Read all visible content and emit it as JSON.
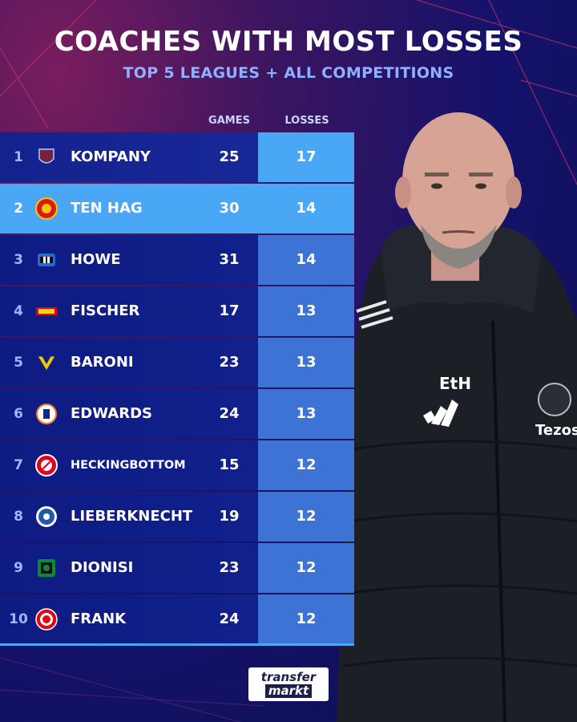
{
  "header": {
    "title": "COACHES WITH MOST LOSSES",
    "subtitle": "TOP 5 LEAGUES + ALL COMPETITIONS"
  },
  "columns": {
    "games": "GAMES",
    "losses": "LOSSES"
  },
  "rows": [
    {
      "rank": "1",
      "name": "KOMPANY",
      "games": "25",
      "losses": "17",
      "crest": "burnley-crest-icon"
    },
    {
      "rank": "2",
      "name": "TEN HAG",
      "games": "30",
      "losses": "14",
      "crest": "man-united-crest-icon"
    },
    {
      "rank": "3",
      "name": "HOWE",
      "games": "31",
      "losses": "14",
      "crest": "newcastle-crest-icon"
    },
    {
      "rank": "4",
      "name": "FISCHER",
      "games": "17",
      "losses": "13",
      "crest": "union-berlin-crest-icon"
    },
    {
      "rank": "5",
      "name": "BARONI",
      "games": "23",
      "losses": "13",
      "crest": "verona-crest-icon"
    },
    {
      "rank": "6",
      "name": "EDWARDS",
      "games": "24",
      "losses": "13",
      "crest": "luton-crest-icon"
    },
    {
      "rank": "7",
      "name": "HECKINGBOTTOM",
      "games": "15",
      "losses": "12",
      "crest": "sheffield-united-crest-icon"
    },
    {
      "rank": "8",
      "name": "LIEBERKNECHT",
      "games": "19",
      "losses": "12",
      "crest": "darmstadt-crest-icon"
    },
    {
      "rank": "9",
      "name": "DIONISI",
      "games": "23",
      "losses": "12",
      "crest": "sassuolo-crest-icon"
    },
    {
      "rank": "10",
      "name": "FRANK",
      "games": "24",
      "losses": "12",
      "crest": "brentford-crest-icon"
    }
  ],
  "jacket": {
    "initials": "EtH",
    "sponsor": "Tezos"
  },
  "brand": {
    "line1": "transfer",
    "line2": "markt"
  },
  "colors": {
    "highlight": "#4aa7f5",
    "losses_cell": "#3e73d6",
    "row_bg": "#13228e",
    "subtitle": "#8fb0ff"
  }
}
